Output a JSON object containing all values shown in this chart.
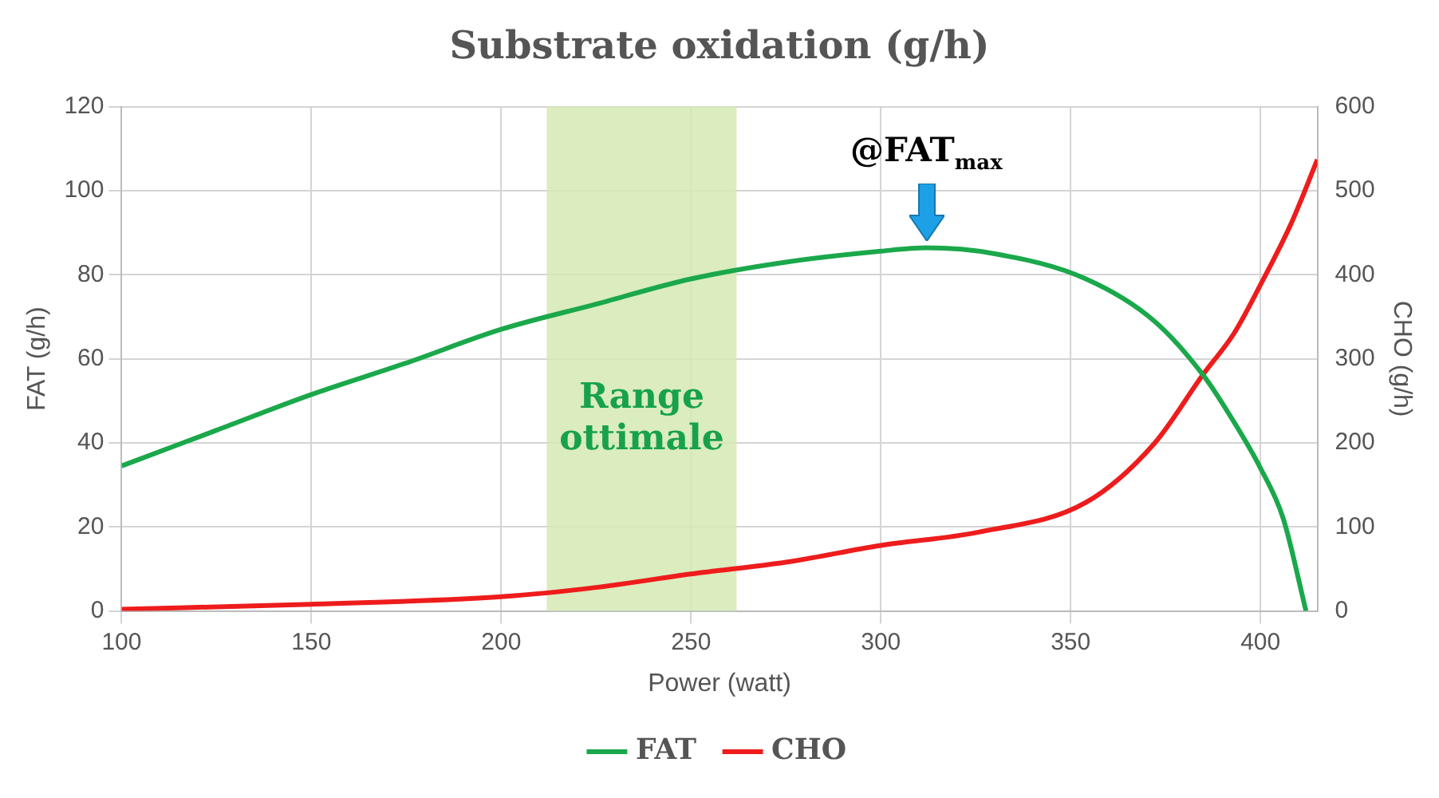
{
  "chart_data": {
    "type": "line",
    "title": "Substrate oxidation (g/h)",
    "xlabel": "Power (watt)",
    "ylabel": "FAT (g/h)",
    "y2label": "CHO (g/h)",
    "xlim": [
      100,
      415
    ],
    "xticks": [
      100,
      150,
      200,
      250,
      300,
      350,
      400
    ],
    "ylim": [
      0,
      120
    ],
    "yticks": [
      0,
      20,
      40,
      60,
      80,
      100,
      120
    ],
    "y2lim": [
      0,
      600
    ],
    "y2ticks": [
      0,
      100,
      200,
      300,
      400,
      500,
      600
    ],
    "grid": true,
    "legend": "bottom",
    "marker": "none",
    "series": [
      {
        "name": "FAT",
        "color": "#1aa84b",
        "x": [
          100,
          125,
          150,
          175,
          200,
          225,
          250,
          275,
          300,
          312,
          330,
          354,
          372,
          385,
          393,
          400,
          406,
          412
        ],
        "values": [
          34.5,
          43,
          51.5,
          59,
          67,
          73,
          79,
          83,
          85.6,
          86.4,
          85,
          79,
          69,
          56,
          45,
          34,
          22,
          0
        ]
      },
      {
        "name": "CHO",
        "color": "#ee1c1c",
        "axis": "y2",
        "x": [
          100,
          150,
          200,
          225,
          250,
          275,
          300,
          326,
          354,
          372,
          385,
          393,
          400,
          408,
          415
        ],
        "values": [
          2,
          8,
          17,
          28,
          44,
          58,
          78,
          94,
          129,
          199,
          282,
          330,
          388,
          460,
          537
        ]
      }
    ],
    "bands": [
      {
        "axis": "x",
        "from": 212,
        "to": 262,
        "label": "Range ottimale",
        "color": "#d5e9b3"
      }
    ],
    "annotations": [
      {
        "text": "@FAT$_{max}$",
        "x": 312,
        "y": 86.4
      }
    ]
  }
}
